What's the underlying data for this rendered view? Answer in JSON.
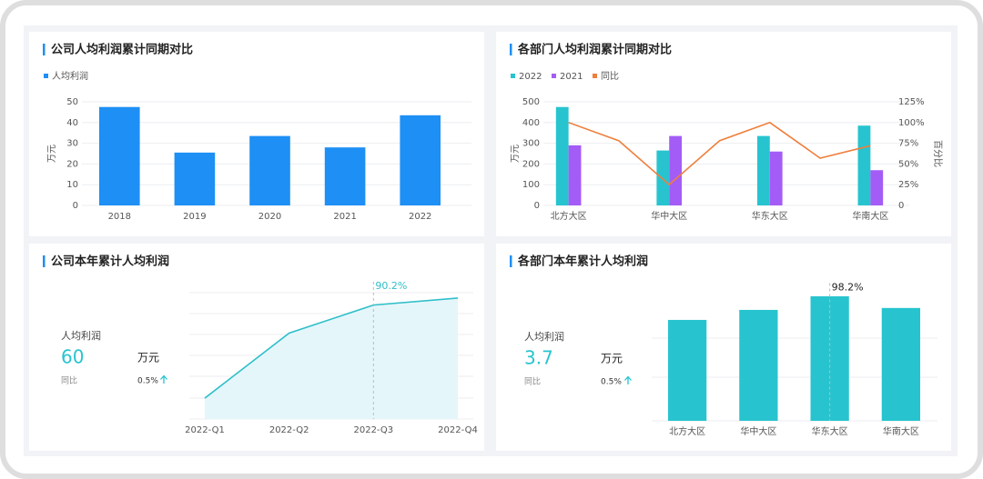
{
  "chart_data": [
    {
      "type": "bar",
      "title": "公司人均利润累计同期对比",
      "legend": "人均利润",
      "ylabel": "万元",
      "categories": [
        "2018",
        "2019",
        "2020",
        "2021",
        "2022"
      ],
      "values": [
        47.5,
        25.5,
        33.5,
        28,
        43.5
      ],
      "color": "#1e8ff5",
      "ylim": [
        0,
        50
      ],
      "yticks": [
        0,
        10,
        20,
        30,
        40,
        50
      ],
      "grid": true
    },
    {
      "type": "bar",
      "title": "各部门人均利润累计同期对比",
      "ylabel": "万元",
      "y2label": "百分比",
      "categories": [
        "北方大区",
        null,
        "华中大区",
        null,
        "华东大区",
        null,
        "华南大区"
      ],
      "series": [
        {
          "name": "2022",
          "color": "#27c4cf",
          "values": [
            475,
            null,
            265,
            null,
            335,
            null,
            385
          ]
        },
        {
          "name": "2021",
          "color": "#a45cf6",
          "values": [
            290,
            null,
            335,
            null,
            260,
            null,
            170
          ]
        },
        {
          "name": "同比",
          "color": "#ef7f3c",
          "type": "line",
          "axis": "y2",
          "values": [
            100,
            78,
            25,
            78,
            100,
            57,
            72
          ]
        }
      ],
      "ylim": [
        0,
        500
      ],
      "yticks": [
        0,
        100,
        200,
        300,
        400,
        500
      ],
      "y2lim": [
        0,
        125
      ],
      "y2ticks": [
        0,
        {
          "value": 25,
          "label": "25%"
        },
        {
          "value": 50,
          "label": "50%"
        },
        {
          "value": 75,
          "label": "75%"
        },
        {
          "value": 100,
          "label": "100%"
        },
        {
          "value": 125,
          "label": "125%"
        }
      ],
      "grid": true
    },
    {
      "type": "area",
      "title": "公司本年累计人均利润",
      "kpi": {
        "label": "人均利润",
        "value": "60",
        "unit": "万元",
        "change_label": "同比",
        "change": "0.5%"
      },
      "categories": [
        "2022-Q1",
        "2022-Q2",
        "2022-Q3",
        "2022-Q4"
      ],
      "values": [
        16.5,
        68,
        90.2,
        95.7
      ],
      "value_labels": [
        null,
        null,
        "90.2%",
        null
      ],
      "color": "#2ebfc9",
      "ylim": [
        0,
        100
      ]
    },
    {
      "type": "bar",
      "title": "各部门本年累计人均利润",
      "kpi": {
        "label": "人均利润",
        "value": "3.7",
        "unit": "万元",
        "change_label": "同比",
        "change": "0.5%"
      },
      "categories": [
        "北方大区",
        "华中大区",
        "华东大区",
        "华南大区"
      ],
      "values": [
        79.6,
        87.5,
        98.2,
        89
      ],
      "value_labels": [
        null,
        null,
        "98.2%",
        null
      ],
      "color": "#27c4cf",
      "ylim": [
        0,
        100
      ]
    }
  ]
}
